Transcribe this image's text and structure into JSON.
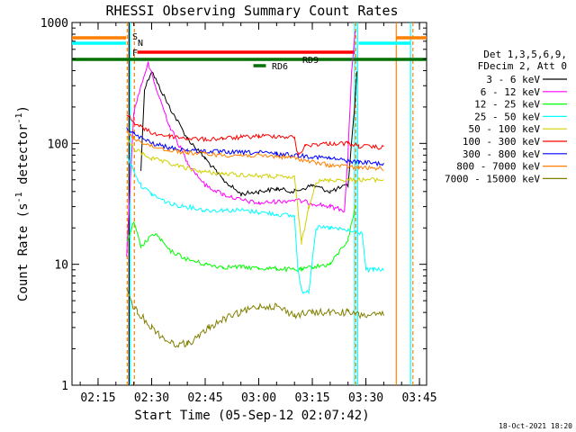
{
  "chart_data": {
    "type": "line",
    "title": "RHESSI Observing Summary Count Rates",
    "xlabel": "Start Time (05-Sep-12 02:07:42)",
    "ylabel_main": "Count Rate (s",
    "ylabel_sup": "-1",
    "ylabel_mid": " detector",
    "ylabel_end": ")",
    "y_scale": "log",
    "xlim": [
      "02:07:42",
      "03:47:00"
    ],
    "ylim": [
      1,
      1000
    ],
    "x_ticks": [
      "02:15",
      "02:30",
      "02:45",
      "03:00",
      "03:15",
      "03:30",
      "03:45"
    ],
    "y_ticks": [
      "1",
      "10",
      "100",
      "1000"
    ],
    "legend_header": [
      "Det 1,3,5,6,9,",
      "FDecim 2, Att 0"
    ],
    "legend_placement": "right",
    "footer_date": "18-Oct-2021 18:20",
    "flags": [
      {
        "label": "S",
        "color": "#ff8000"
      },
      {
        "label": "N",
        "color": "#00ffff"
      },
      {
        "label": "F",
        "color": "#ff0000"
      },
      {
        "label": "RD9",
        "color": "#007000"
      },
      {
        "label": "RD6",
        "color": "#007000"
      }
    ],
    "series": [
      {
        "name": "3 - 6 keV",
        "color": "#000000",
        "x": [
          "02:27",
          "02:28",
          "02:30",
          "02:32",
          "02:35",
          "02:40",
          "02:45",
          "02:50",
          "02:55",
          "03:00",
          "03:05",
          "03:10",
          "03:15",
          "03:20",
          "03:25",
          "03:27",
          "03:27:30"
        ],
        "y": [
          60,
          280,
          400,
          300,
          200,
          110,
          75,
          50,
          38,
          40,
          42,
          40,
          45,
          40,
          45,
          230,
          380
        ]
      },
      {
        "name": "6 - 12 keV",
        "color": "#ff00ff",
        "x": [
          "02:23",
          "02:25",
          "02:27",
          "02:29",
          "02:31",
          "02:35",
          "02:40",
          "02:45",
          "02:50",
          "02:55",
          "03:00",
          "03:05",
          "03:10",
          "03:15",
          "03:20",
          "03:24",
          "03:25",
          "03:26",
          "03:27"
        ],
        "y": [
          12,
          180,
          300,
          460,
          300,
          140,
          70,
          45,
          38,
          34,
          32,
          33,
          34,
          32,
          30,
          28,
          80,
          400,
          820
        ]
      },
      {
        "name": "12 - 25 keV",
        "color": "#00ff00",
        "x": [
          "02:23",
          "02:25",
          "02:27",
          "02:29",
          "02:31",
          "02:35",
          "02:40",
          "02:45",
          "02:50",
          "02:55",
          "03:00",
          "03:05",
          "03:10",
          "03:12",
          "03:15",
          "03:20",
          "03:25",
          "03:27"
        ],
        "y": [
          15,
          22,
          14,
          16,
          18,
          13,
          11,
          10,
          9.5,
          9.5,
          9.3,
          9.2,
          9,
          9,
          9.5,
          10,
          16,
          30
        ]
      },
      {
        "name": "25 - 50 keV",
        "color": "#00ffff",
        "x": [
          "02:23",
          "02:25",
          "02:27",
          "02:30",
          "02:33",
          "02:36",
          "02:40",
          "02:45",
          "02:50",
          "02:55",
          "03:00",
          "03:05",
          "03:10",
          "03:11",
          "03:12",
          "03:14",
          "03:16",
          "03:20",
          "03:25",
          "03:29",
          "03:30",
          "03:32",
          "03:35"
        ],
        "y": [
          80,
          60,
          45,
          38,
          34,
          31,
          30,
          28,
          28,
          28,
          27,
          26,
          25,
          9,
          6,
          6,
          20,
          20,
          19,
          18,
          9,
          9,
          9
        ]
      },
      {
        "name": "50 - 100 keV",
        "color": "#d0d000",
        "x": [
          "02:23",
          "02:25",
          "02:30",
          "02:35",
          "02:40",
          "02:45",
          "02:50",
          "02:55",
          "03:00",
          "03:05",
          "03:10",
          "03:12",
          "03:14",
          "03:16",
          "03:20",
          "03:25",
          "03:30",
          "03:35"
        ],
        "y": [
          110,
          90,
          75,
          68,
          62,
          58,
          56,
          55,
          54,
          53,
          52,
          15,
          30,
          48,
          50,
          50,
          50,
          50
        ]
      },
      {
        "name": "100 - 300 keV",
        "color": "#ff0000",
        "x": [
          "02:23",
          "02:25",
          "02:28",
          "02:31",
          "02:35",
          "02:40",
          "02:45",
          "02:50",
          "02:55",
          "03:00",
          "03:05",
          "03:10",
          "03:11",
          "03:13",
          "03:15",
          "03:20",
          "03:25",
          "03:28",
          "03:35"
        ],
        "y": [
          175,
          150,
          130,
          120,
          115,
          110,
          108,
          110,
          112,
          115,
          115,
          112,
          80,
          95,
          98,
          100,
          100,
          95,
          92
        ]
      },
      {
        "name": "300 - 800 keV",
        "color": "#0000ff",
        "x": [
          "02:23",
          "02:25",
          "02:30",
          "02:35",
          "02:40",
          "02:45",
          "02:50",
          "02:55",
          "03:00",
          "03:05",
          "03:10",
          "03:15",
          "03:20",
          "03:25",
          "03:28",
          "03:35"
        ],
        "y": [
          135,
          120,
          100,
          92,
          88,
          86,
          85,
          84,
          84,
          82,
          80,
          78,
          75,
          72,
          70,
          68
        ]
      },
      {
        "name": "800 - 7000 keV",
        "color": "#ff8000",
        "x": [
          "02:23",
          "02:25",
          "02:30",
          "02:35",
          "02:40",
          "02:45",
          "02:50",
          "02:55",
          "03:00",
          "03:05",
          "03:10",
          "03:15",
          "03:20",
          "03:25",
          "03:28",
          "03:35"
        ],
        "y": [
          125,
          110,
          95,
          88,
          84,
          82,
          80,
          80,
          79,
          78,
          76,
          70,
          66,
          64,
          63,
          62
        ]
      },
      {
        "name": "7000 - 15000 keV",
        "color": "#808000",
        "x": [
          "02:23",
          "02:24",
          "02:26",
          "02:28",
          "02:30",
          "02:33",
          "02:36",
          "02:40",
          "02:43",
          "02:46",
          "02:50",
          "02:55",
          "03:00",
          "03:05",
          "03:10",
          "03:15",
          "03:20",
          "03:25",
          "03:28",
          "03:35"
        ],
        "y": [
          6,
          5,
          4,
          3.5,
          3,
          2.5,
          2.2,
          2.2,
          2.5,
          3,
          3.5,
          4,
          4.5,
          4.5,
          3.8,
          4,
          4,
          4,
          3.8,
          3.8
        ]
      }
    ]
  }
}
